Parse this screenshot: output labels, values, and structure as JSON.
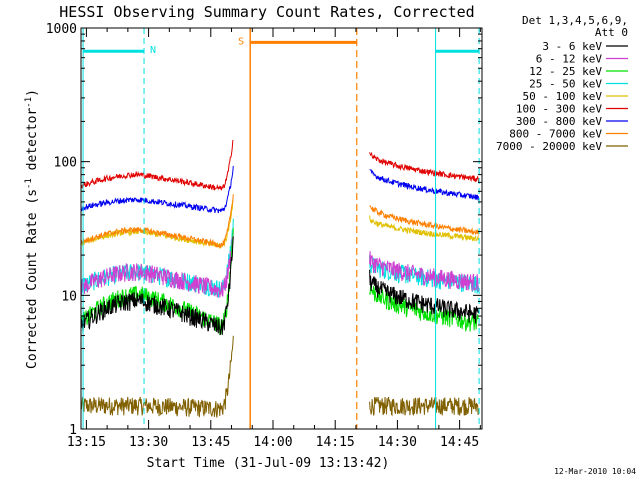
{
  "chart_data": {
    "type": "line",
    "title": "HESSI Observing Summary Count Rates, Corrected",
    "xlabel": "Start Time (31-Jul-09 13:13:42)",
    "ylabel_main": "Corrected Count Rate (s",
    "ylabel_sup1": "-1",
    "ylabel_mid": " detector",
    "ylabel_sup2": "-1",
    "ylabel_end": ")",
    "ylog": true,
    "ylim": [
      1,
      1000
    ],
    "xlim_min": [
      13.7,
      110.4
    ],
    "x_ticks": [
      {
        "label": "13:15",
        "min": 15
      },
      {
        "label": "13:30",
        "min": 30
      },
      {
        "label": "13:45",
        "min": 45
      },
      {
        "label": "14:00",
        "min": 60
      },
      {
        "label": "14:15",
        "min": 75
      },
      {
        "label": "14:30",
        "min": 90
      },
      {
        "label": "14:45",
        "min": 105
      }
    ],
    "y_ticks": [
      {
        "label": "1",
        "value": 1
      },
      {
        "label": "10",
        "value": 10
      },
      {
        "label": "100",
        "value": 100
      },
      {
        "label": "1000",
        "value": 1000
      }
    ],
    "legend_header": [
      "Det 1,3,4,5,6,9,",
      "Att 0"
    ],
    "legend_position": "outside-right",
    "series": [
      {
        "name": "3 - 6 keV",
        "color": "#000000",
        "pre": 6.0,
        "peak": 9.2,
        "post_start": 13.5,
        "post_end": 7.2,
        "rise": 30
      },
      {
        "name": "6 - 12 keV",
        "color": "#d040d0",
        "pre": 11.5,
        "peak": 15.2,
        "post_start": 19.0,
        "post_end": 12.5,
        "rise": 32
      },
      {
        "name": "12 - 25 keV",
        "color": "#00e000",
        "pre": 6.2,
        "peak": 10.2,
        "post_start": 12.0,
        "post_end": 6.2,
        "rise": 35
      },
      {
        "name": "25 - 50 keV",
        "color": "#00e0e0",
        "pre": 11.8,
        "peak": 15.0,
        "post_start": 18.0,
        "post_end": 12.2,
        "rise": 38
      },
      {
        "name": "50 - 100 keV",
        "color": "#e0c000",
        "pre": 24.5,
        "peak": 30.0,
        "post_start": 38.0,
        "post_end": 26.5,
        "rise": 55
      },
      {
        "name": "100 - 300 keV",
        "color": "#e00000",
        "pre": 66.0,
        "peak": 80.0,
        "post_start": 118.0,
        "post_end": 74.0,
        "rise": 160
      },
      {
        "name": "300 - 800 keV",
        "color": "#0000f0",
        "pre": 45.0,
        "peak": 52.0,
        "post_start": 88.0,
        "post_end": 54.0,
        "rise": 95
      },
      {
        "name": "800 - 7000 keV",
        "color": "#ff8000",
        "pre": 25.0,
        "peak": 31.0,
        "post_start": 48.0,
        "post_end": 29.5,
        "rise": 60
      },
      {
        "name": "7000 - 20000 keV",
        "color": "#806000",
        "pre": 1.5,
        "peak": 1.5,
        "post_start": 1.5,
        "post_end": 1.5,
        "rise": 5
      }
    ],
    "gap_min": [
      50.5,
      83.3
    ],
    "night": [
      {
        "label": "N",
        "start": 14.2,
        "end": 28.9,
        "y": 670
      },
      {
        "label": "",
        "start": 99.2,
        "end": 109.7,
        "y": 670
      }
    ],
    "saa": {
      "label": "S",
      "start": 54.5,
      "end": 80.2,
      "y": 780
    },
    "colors": {
      "night": "#00e0e0",
      "saa": "#ff8000"
    }
  },
  "timestamp": "12-Mar-2010 10:04"
}
